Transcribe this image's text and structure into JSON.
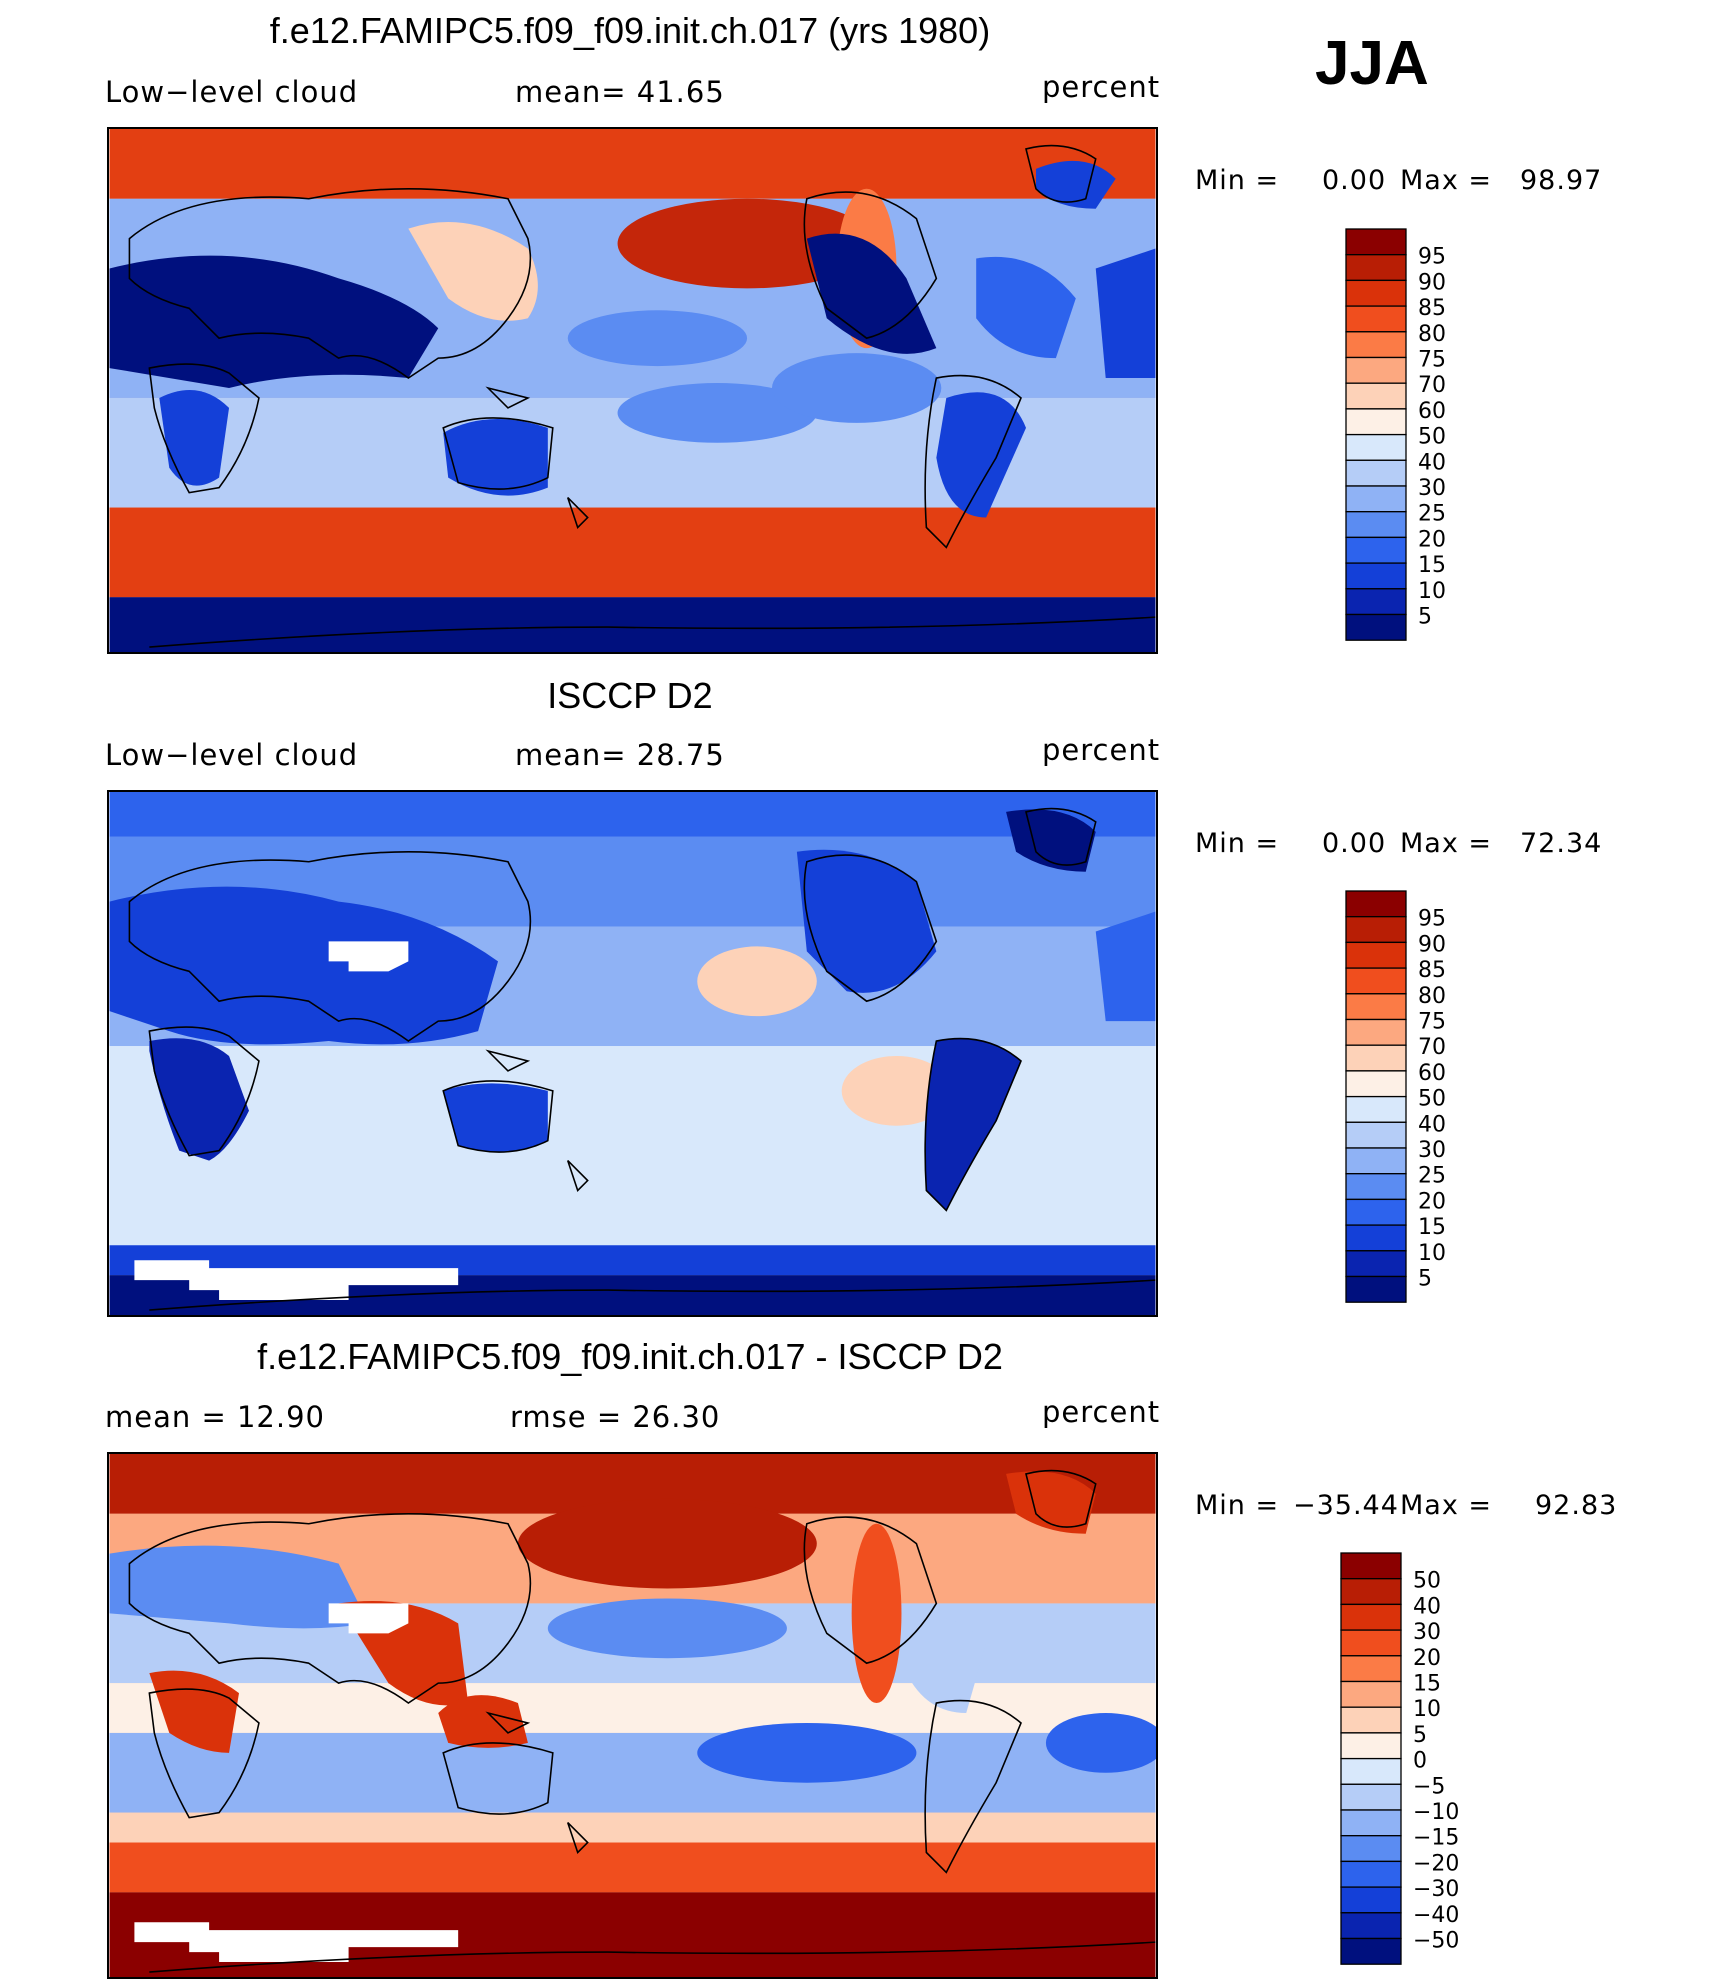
{
  "season": "JJA",
  "panels": [
    {
      "title": "f.e12.FAMIPC5.f09_f09.init.ch.017 (yrs 1980)",
      "left_label": "Low−level cloud",
      "center_label": "mean=   41.65",
      "units": "percent",
      "min_label": "Min  =",
      "min_value": "0.00",
      "max_label": "Max  =",
      "max_value": "98.97",
      "colorbar": {
        "levels": [
          "95",
          "90",
          "85",
          "80",
          "75",
          "70",
          "60",
          "50",
          "40",
          "30",
          "25",
          "20",
          "15",
          "10",
          "5"
        ],
        "colors": [
          "#8b0000",
          "#b81e05",
          "#da320a",
          "#f04e1e",
          "#fb7b46",
          "#fca880",
          "#fdd2b8",
          "#fdf0e6",
          "#d8e8fb",
          "#b5cdf7",
          "#8fb2f5",
          "#5b8cf2",
          "#2d63ed",
          "#1440d8",
          "#0a24b0",
          "#00107e"
        ]
      }
    },
    {
      "title": "ISCCP D2",
      "left_label": "Low−level cloud",
      "center_label": "mean=   28.75",
      "units": "percent",
      "min_label": "Min  =",
      "min_value": "0.00",
      "max_label": "Max  =",
      "max_value": "72.34",
      "colorbar": {
        "levels": [
          "95",
          "90",
          "85",
          "80",
          "75",
          "70",
          "60",
          "50",
          "40",
          "30",
          "25",
          "20",
          "15",
          "10",
          "5"
        ],
        "colors": [
          "#8b0000",
          "#b81e05",
          "#da320a",
          "#f04e1e",
          "#fb7b46",
          "#fca880",
          "#fdd2b8",
          "#fdf0e6",
          "#d8e8fb",
          "#b5cdf7",
          "#8fb2f5",
          "#5b8cf2",
          "#2d63ed",
          "#1440d8",
          "#0a24b0",
          "#00107e"
        ]
      }
    },
    {
      "title": "f.e12.FAMIPC5.f09_f09.init.ch.017 - ISCCP D2",
      "left_label": "mean  =    12.90",
      "center_label": "rmse  =    26.30",
      "units": "percent",
      "min_label": "Min  =",
      "min_value": "−35.44",
      "max_label": "Max  =",
      "max_value": "92.83",
      "colorbar": {
        "levels": [
          "50",
          "40",
          "30",
          "20",
          "15",
          "10",
          "5",
          "0",
          "−5",
          "−10",
          "−15",
          "−20",
          "−30",
          "−40",
          "−50"
        ],
        "colors": [
          "#8b0000",
          "#b81e05",
          "#da320a",
          "#f04e1e",
          "#fb7b46",
          "#fca880",
          "#fdd2b8",
          "#fdf0e6",
          "#d8e8fb",
          "#b5cdf7",
          "#8fb2f5",
          "#5b8cf2",
          "#2d63ed",
          "#1440d8",
          "#0a24b0",
          "#00107e"
        ]
      }
    }
  ],
  "chart_data": [
    {
      "type": "heatmap",
      "title": "f.e12.FAMIPC5.f09_f09.init.ch.017 (yrs 1980)",
      "variable": "Low−level cloud",
      "units": "percent",
      "mean": 41.65,
      "min": 0.0,
      "max": 98.97,
      "contour_levels": [
        5,
        10,
        15,
        20,
        25,
        30,
        40,
        50,
        60,
        70,
        75,
        80,
        85,
        90,
        95
      ]
    },
    {
      "type": "heatmap",
      "title": "ISCCP D2",
      "variable": "Low−level cloud",
      "units": "percent",
      "mean": 28.75,
      "min": 0.0,
      "max": 72.34,
      "contour_levels": [
        5,
        10,
        15,
        20,
        25,
        30,
        40,
        50,
        60,
        70,
        75,
        80,
        85,
        90,
        95
      ]
    },
    {
      "type": "heatmap",
      "title": "f.e12.FAMIPC5.f09_f09.init.ch.017 - ISCCP D2",
      "units": "percent",
      "mean": 12.9,
      "rmse": 26.3,
      "min": -35.44,
      "max": 92.83,
      "contour_levels": [
        -50,
        -40,
        -30,
        -20,
        -15,
        -10,
        -5,
        0,
        5,
        10,
        15,
        20,
        30,
        40,
        50
      ]
    }
  ]
}
